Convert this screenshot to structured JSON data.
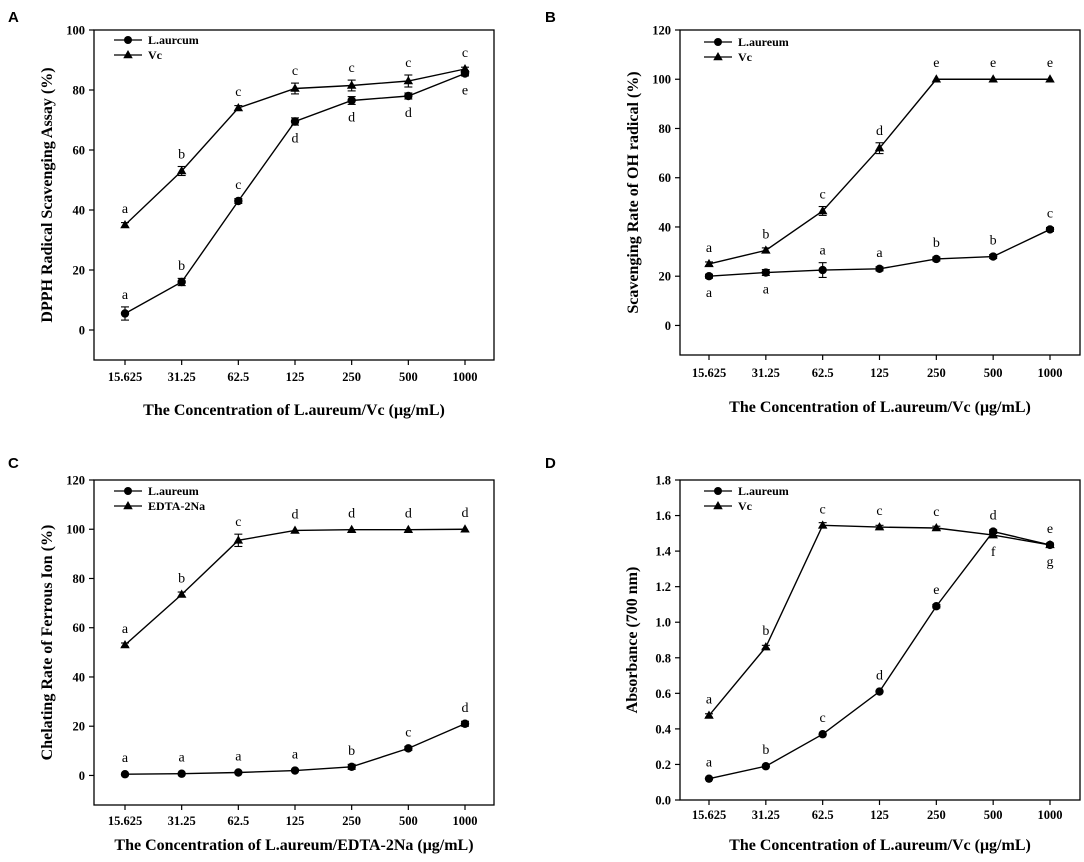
{
  "chart_data": [
    {
      "panel": "A",
      "type": "line",
      "categories": [
        "15.625",
        "31.25",
        "62.5",
        "125",
        "250",
        "500",
        "1000"
      ],
      "xlabel": "The Concentration of L.aureum/Vc (μg/mL)",
      "ylabel": "DPPH Radical Scavenging Assay (%)",
      "ylim": [
        -10,
        100
      ],
      "yticks": [
        0,
        20,
        40,
        60,
        80,
        100
      ],
      "ytick_labels": [
        "0",
        "20",
        "40",
        "60",
        "80",
        "100"
      ],
      "legend_position": "top-left",
      "series": [
        {
          "name": "L.aurcum",
          "marker": "circle",
          "values": [
            5.5,
            16,
            43,
            69.5,
            76.5,
            78,
            85.5
          ],
          "errors": [
            2.2,
            1.2,
            0.8,
            1.2,
            1.3,
            1,
            0.8
          ],
          "letters": [
            "a",
            "b",
            "c",
            "d",
            "d",
            "d",
            "e"
          ],
          "letter_pos": [
            "above",
            "above",
            "above",
            "below",
            "below",
            "below",
            "below"
          ]
        },
        {
          "name": "Vc",
          "marker": "triangle",
          "values": [
            35,
            53,
            74,
            80.5,
            81.5,
            83,
            87
          ],
          "errors": [
            0.8,
            1.5,
            0.8,
            1.8,
            1.8,
            2,
            0.6
          ],
          "letters": [
            "a",
            "b",
            "c",
            "c",
            "c",
            "c",
            "c"
          ],
          "letter_pos": [
            "above",
            "above",
            "above",
            "above",
            "above",
            "above",
            "above"
          ]
        }
      ]
    },
    {
      "panel": "B",
      "type": "line",
      "categories": [
        "15.625",
        "31.25",
        "62.5",
        "125",
        "250",
        "500",
        "1000"
      ],
      "xlabel": "The Concentration of L.aureum/Vc (μg/mL)",
      "ylabel": "Scavenging Rate of OH radical (%)",
      "ylim": [
        -12,
        120
      ],
      "yticks": [
        0,
        20,
        40,
        60,
        80,
        100,
        120
      ],
      "ytick_labels": [
        "0",
        "20",
        "40",
        "60",
        "80",
        "100",
        "120"
      ],
      "legend_position": "top-left",
      "series": [
        {
          "name": "L.aureum",
          "marker": "circle",
          "values": [
            20,
            21.5,
            22.5,
            23,
            27,
            28,
            39
          ],
          "errors": [
            0.8,
            1.2,
            3,
            0.8,
            0.8,
            0.8,
            0.8
          ],
          "letters": [
            "a",
            "a",
            "a",
            "a",
            "b",
            "b",
            "c"
          ],
          "letter_pos": [
            "below",
            "below",
            "above",
            "above",
            "above",
            "above",
            "above"
          ]
        },
        {
          "name": "Vc",
          "marker": "triangle",
          "values": [
            25,
            30.5,
            46.5,
            72,
            100,
            100,
            100
          ],
          "errors": [
            0.8,
            1,
            1.8,
            2.2,
            0.5,
            0.5,
            0.5
          ],
          "letters": [
            "a",
            "b",
            "c",
            "d",
            "e",
            "e",
            "e"
          ],
          "letter_pos": [
            "above",
            "above",
            "above",
            "above",
            "above",
            "above",
            "above"
          ]
        }
      ]
    },
    {
      "panel": "C",
      "type": "line",
      "categories": [
        "15.625",
        "31.25",
        "62.5",
        "125",
        "250",
        "500",
        "1000"
      ],
      "xlabel": "The Concentration of L.aureum/EDTA-2Na (μg/mL)",
      "ylabel": "Chelating Rate of Ferrous Ion (%)",
      "ylim": [
        -12,
        120
      ],
      "yticks": [
        0,
        20,
        40,
        60,
        80,
        100,
        120
      ],
      "ytick_labels": [
        "0",
        "20",
        "40",
        "60",
        "80",
        "100",
        "120"
      ],
      "legend_position": "top-left",
      "series": [
        {
          "name": "L.aureum",
          "marker": "circle",
          "values": [
            0.5,
            0.7,
            1.2,
            2,
            3.5,
            11,
            21
          ],
          "errors": [
            0.3,
            0.3,
            0.3,
            0.5,
            1,
            0.8,
            1
          ],
          "letters": [
            "a",
            "a",
            "a",
            "a",
            "b",
            "c",
            "d"
          ],
          "letter_pos": [
            "above",
            "above",
            "above",
            "above",
            "above",
            "above",
            "above"
          ]
        },
        {
          "name": "EDTA-2Na",
          "marker": "triangle",
          "values": [
            53,
            73.5,
            95.5,
            99.5,
            99.8,
            99.8,
            100
          ],
          "errors": [
            0.8,
            1,
            2.5,
            0.6,
            0.5,
            0.5,
            0.5
          ],
          "letters": [
            "a",
            "b",
            "c",
            "d",
            "d",
            "d",
            "d"
          ],
          "letter_pos": [
            "above",
            "above",
            "above",
            "above",
            "above",
            "above",
            "above"
          ]
        }
      ]
    },
    {
      "panel": "D",
      "type": "line",
      "categories": [
        "15.625",
        "31.25",
        "62.5",
        "125",
        "250",
        "500",
        "1000"
      ],
      "xlabel": "The Concentration of L.aureum/Vc (μg/mL)",
      "ylabel": "Absorbance (700 nm)",
      "ylim": [
        0,
        1.8
      ],
      "yticks": [
        0,
        0.2,
        0.4,
        0.6,
        0.8,
        1,
        1.2,
        1.4,
        1.6,
        1.8
      ],
      "ytick_labels": [
        "0.0",
        "0.2",
        "0.4",
        "0.6",
        "0.8",
        "1.0",
        "1.2",
        "1.4",
        "1.6",
        "1.8"
      ],
      "legend_position": "top-left",
      "series": [
        {
          "name": "L.aureum",
          "marker": "circle",
          "values": [
            0.12,
            0.19,
            0.37,
            0.61,
            1.09,
            1.51,
            1.435
          ],
          "errors": [
            0.005,
            0.005,
            0.008,
            0.008,
            0.01,
            0.01,
            0.01
          ],
          "letters": [
            "a",
            "b",
            "c",
            "d",
            "e",
            "d",
            "e"
          ],
          "letter_pos": [
            "above",
            "above",
            "above",
            "above",
            "above",
            "above",
            "above"
          ]
        },
        {
          "name": "Vc",
          "marker": "triangle",
          "values": [
            0.475,
            0.86,
            1.545,
            1.535,
            1.53,
            1.49,
            1.435
          ],
          "errors": [
            0.01,
            0.01,
            0.015,
            0.01,
            0.01,
            0.01,
            0.01
          ],
          "letters": [
            "a",
            "b",
            "c",
            "c",
            "c",
            "f",
            "g"
          ],
          "letter_pos": [
            "above",
            "above",
            "above",
            "above",
            "above",
            "below",
            "below"
          ]
        }
      ]
    }
  ]
}
